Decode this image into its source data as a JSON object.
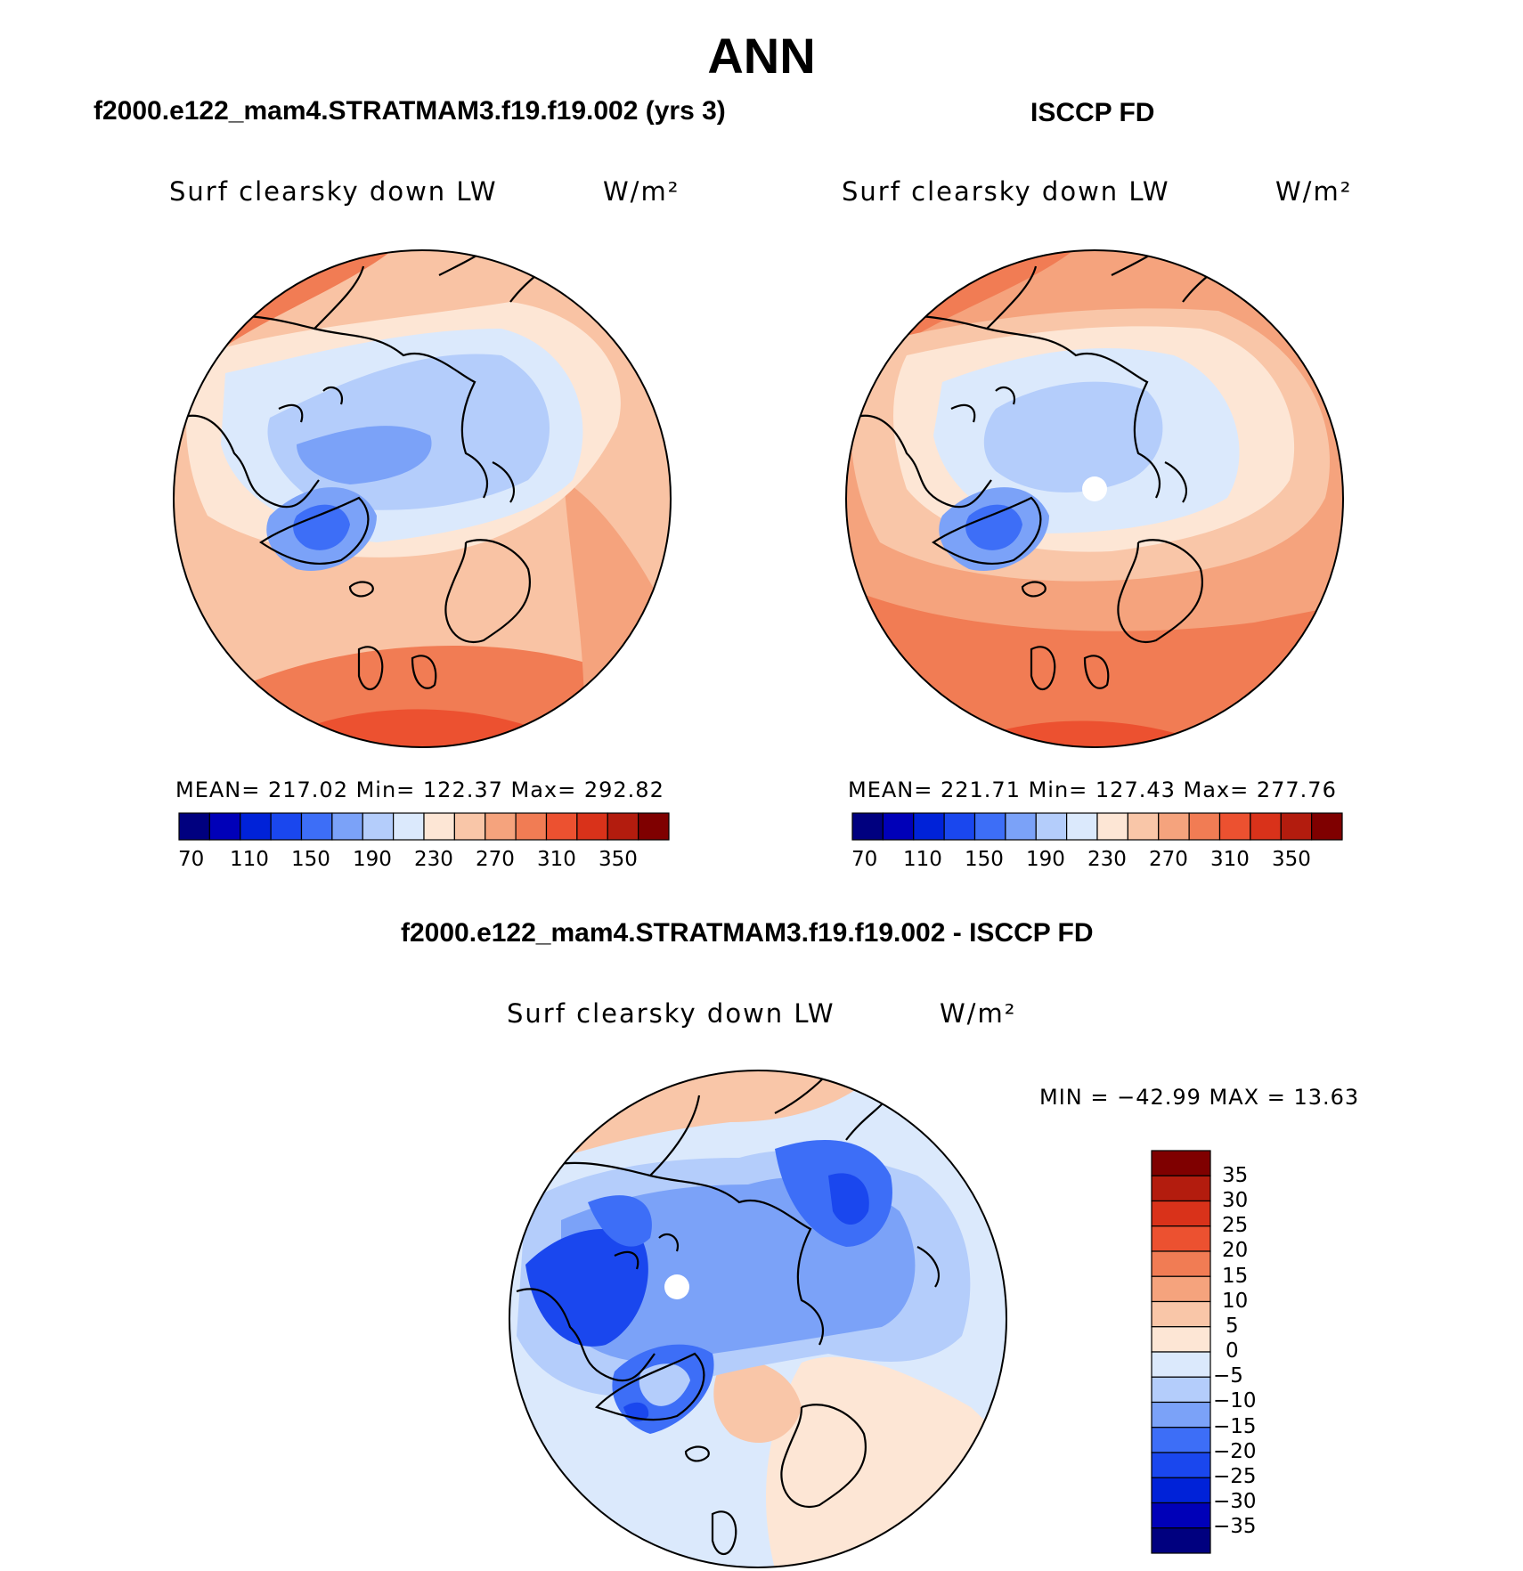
{
  "title": "ANN",
  "colors": {
    "abs_levels": [
      "#00007f",
      "#0000b8",
      "#0022d8",
      "#1a47ee",
      "#3d6ef7",
      "#7ba2f8",
      "#b4cdfb",
      "#dbe9fc",
      "#fde6d5",
      "#f9c6a8",
      "#f5a37d",
      "#f17c54",
      "#ec5130",
      "#d9321a",
      "#b31c0e",
      "#7f0000"
    ],
    "diff_levels": [
      "#00007f",
      "#0000b8",
      "#0022d8",
      "#1a47ee",
      "#3d6ef7",
      "#7ba2f8",
      "#b4cdfb",
      "#dbe9fc",
      "#fde6d5",
      "#f9c6a8",
      "#f5a37d",
      "#f17c54",
      "#ec5130",
      "#d9321a",
      "#b31c0e",
      "#7f0000"
    ]
  },
  "panels": [
    {
      "title": "f2000.e122_mam4.STRATMAM3.f19.f19.002 (yrs 3)",
      "variable": "Surf clearsky down LW",
      "units": "W/m²",
      "stats": "MEAN= 217.02  Min= 122.37  Max= 292.82",
      "colorbar_ticks": [
        "70",
        "110",
        "150",
        "190",
        "230",
        "270",
        "310",
        "350"
      ]
    },
    {
      "title": "ISCCP FD",
      "variable": "Surf clearsky down LW",
      "units": "W/m²",
      "stats": "MEAN= 221.71  Min= 127.43  Max= 277.76",
      "colorbar_ticks": [
        "70",
        "110",
        "150",
        "190",
        "230",
        "270",
        "310",
        "350"
      ]
    }
  ],
  "diff": {
    "title": "f2000.e122_mam4.STRATMAM3.f19.f19.002 - ISCCP FD",
    "variable": "Surf clearsky down LW",
    "units": "W/m²",
    "stats": "MIN = −42.99 MAX =   13.63",
    "colorbar_ticks": [
      "35",
      "30",
      "25",
      "20",
      "15",
      "10",
      "5",
      "0",
      "−5",
      "−10",
      "−15",
      "−20",
      "−25",
      "−30",
      "−35"
    ]
  }
}
